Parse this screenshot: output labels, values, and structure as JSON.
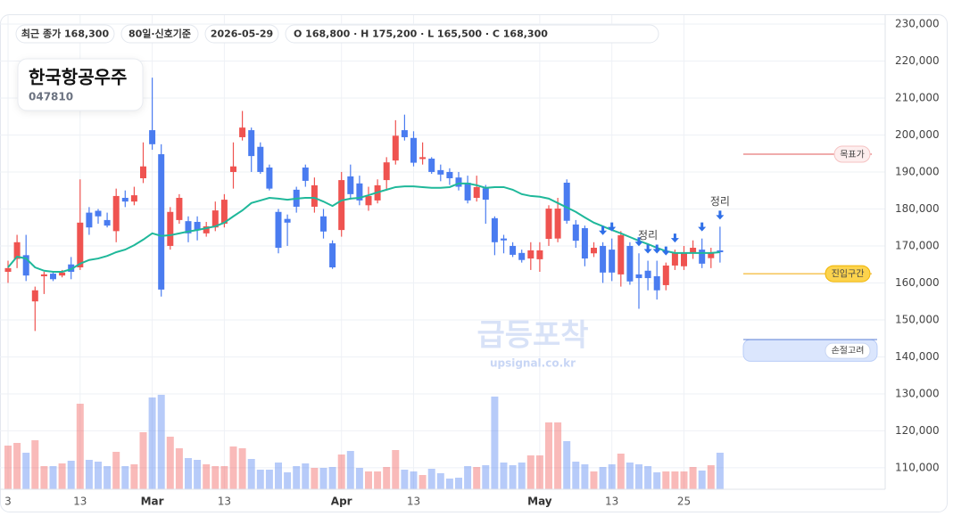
{
  "chart_data": {
    "type": "candlestick",
    "title": "한국항공우주",
    "subtitle": "047810",
    "badges": [
      "최근 종가 168,300",
      "80일·신호기준",
      "2026-05-29",
      "O 168,800 · H 175,200 · L 165,500 · C 168,300"
    ],
    "watermark": "급등포착",
    "watermark_url": "upsignal.co.kr",
    "categories": [
      "3",
      null,
      null,
      null,
      null,
      null,
      null,
      null,
      "13",
      null,
      null,
      null,
      null,
      null,
      null,
      null,
      "Mar",
      null,
      null,
      null,
      null,
      null,
      null,
      null,
      "13",
      null,
      null,
      null,
      null,
      null,
      null,
      null,
      null,
      null,
      null,
      null,
      null,
      "Apr",
      null,
      null,
      null,
      null,
      null,
      null,
      null,
      "13",
      null,
      null,
      null,
      null,
      null,
      null,
      null,
      null,
      null,
      null,
      null,
      null,
      null,
      "May",
      null,
      null,
      null,
      null,
      null,
      null,
      null,
      "13",
      null,
      null,
      null,
      null,
      null,
      null,
      null,
      "25",
      null,
      null,
      null,
      null
    ],
    "open": [
      163000,
      166500,
      167500,
      155000,
      161800,
      162500,
      162000,
      165000,
      164200,
      179000,
      179500,
      177000,
      174000,
      183000,
      182000,
      188300,
      201300,
      194800,
      170000,
      177000,
      176700,
      176500,
      173400,
      175000,
      176000,
      190000,
      199400,
      201300,
      196800,
      191200,
      179200,
      177300,
      185200,
      191200,
      180600,
      178000,
      170700,
      174300,
      188800,
      186900,
      181000,
      182300,
      187800,
      193100,
      201300,
      199200,
      193500,
      193600,
      190500,
      190000,
      188500,
      187100,
      183000,
      185600,
      177500,
      172000,
      170000,
      168100,
      166600,
      166400,
      171900,
      172000,
      187100,
      175800,
      174800,
      168000,
      170000,
      169000,
      162300,
      170000,
      162300,
      163300,
      161800,
      159400,
      164700,
      164500,
      168100,
      169000,
      166700,
      168800
    ],
    "high": [
      166000,
      173000,
      173000,
      159000,
      163000,
      163000,
      163500,
      167000,
      188000,
      180500,
      180000,
      179000,
      185500,
      185000,
      186000,
      198000,
      215500,
      197500,
      180500,
      184000,
      178000,
      178000,
      176500,
      182000,
      184000,
      198000,
      206500,
      202000,
      198000,
      192000,
      180000,
      178500,
      186000,
      192000,
      188500,
      180000,
      171500,
      190000,
      192000,
      189000,
      186000,
      188000,
      194000,
      204000,
      205500,
      201000,
      198000,
      194000,
      192000,
      191000,
      190000,
      189000,
      189000,
      186500,
      178000,
      173000,
      171000,
      169000,
      171000,
      171000,
      181000,
      183000,
      188000,
      177000,
      175500,
      171000,
      171000,
      172000,
      174000,
      171000,
      168000,
      166000,
      166000,
      165500,
      169000,
      170000,
      171500,
      172000,
      169500,
      175200
    ],
    "low": [
      160000,
      164000,
      160500,
      147000,
      157000,
      160500,
      161500,
      161000,
      163500,
      173000,
      176000,
      175000,
      171000,
      180500,
      181000,
      187000,
      196000,
      156300,
      169000,
      176000,
      171000,
      171500,
      172500,
      174000,
      175000,
      185500,
      198500,
      190000,
      189500,
      185000,
      168000,
      170000,
      179000,
      186000,
      179000,
      172000,
      163800,
      172500,
      182500,
      181000,
      179500,
      181500,
      185000,
      192000,
      198500,
      191500,
      192000,
      189500,
      187500,
      186500,
      185000,
      181500,
      182000,
      176000,
      167500,
      168000,
      167000,
      165500,
      163500,
      163000,
      170000,
      171000,
      176000,
      169500,
      164500,
      167000,
      160000,
      160500,
      159000,
      159500,
      153000,
      158000,
      155500,
      158000,
      163500,
      163500,
      166500,
      164000,
      164000,
      165500
    ],
    "close": [
      164000,
      171000,
      162000,
      158000,
      162300,
      161000,
      162800,
      163000,
      176300,
      175000,
      178000,
      175500,
      183500,
      182000,
      183700,
      191500,
      197500,
      158200,
      179200,
      183000,
      173400,
      174300,
      175300,
      179600,
      182500,
      191500,
      202000,
      194300,
      190000,
      185500,
      169500,
      176300,
      180600,
      187600,
      186400,
      173900,
      164200,
      187800,
      184000,
      182300,
      183500,
      186400,
      192600,
      199800,
      199400,
      192500,
      194000,
      190000,
      189300,
      188300,
      186000,
      182300,
      185900,
      182500,
      171000,
      171500,
      167600,
      166200,
      168800,
      168800,
      180100,
      180100,
      176800,
      171400,
      166600,
      169500,
      162800,
      162800,
      172900,
      160400,
      161300,
      161300,
      158000,
      164700,
      168100,
      168100,
      169500,
      165200,
      168300,
      168300
    ],
    "ma": [
      164200,
      167100,
      166600,
      164200,
      163300,
      163000,
      163000,
      163700,
      165200,
      166200,
      166600,
      167300,
      168300,
      169000,
      170200,
      171700,
      173400,
      172700,
      172900,
      173400,
      173900,
      174300,
      174800,
      175300,
      176300,
      178000,
      179600,
      181600,
      182300,
      183000,
      182800,
      182500,
      182800,
      183000,
      183000,
      182000,
      180800,
      182300,
      182800,
      183000,
      183700,
      184500,
      185200,
      185900,
      186100,
      186100,
      185900,
      185700,
      185700,
      185900,
      186900,
      186900,
      186400,
      185700,
      185900,
      185900,
      185200,
      184000,
      183500,
      183300,
      182800,
      181600,
      180400,
      179200,
      177700,
      176300,
      175300,
      174300,
      173400,
      172400,
      171400,
      170500,
      169500,
      168600,
      168100,
      168100,
      168100,
      168100,
      168100,
      168300
    ],
    "volume": [
      49,
      52,
      41,
      55,
      26,
      26,
      29,
      32,
      96,
      33,
      31,
      26,
      42,
      26,
      28,
      64,
      103,
      106,
      59,
      46,
      35,
      33,
      28,
      26,
      26,
      48,
      46,
      34,
      22,
      22,
      30,
      19,
      26,
      29,
      24,
      24,
      25,
      39,
      43,
      24,
      20,
      20,
      25,
      44,
      22,
      20,
      16,
      23,
      18,
      12,
      13,
      26,
      25,
      27,
      104,
      30,
      27,
      30,
      38,
      38,
      75,
      75,
      54,
      31,
      28,
      20,
      25,
      28,
      40,
      30,
      28,
      26,
      19,
      20,
      20,
      20,
      25,
      21,
      27,
      41
    ],
    "vlim": [
      0,
      110
    ],
    "up_color": "#ef5350",
    "down_color": "#4a7cf0",
    "ma_color": "#1fb89a",
    "signals": [
      66,
      67,
      70,
      71,
      72,
      73,
      74,
      77,
      79
    ],
    "annotations": [
      {
        "index": 71,
        "text": "정리"
      },
      {
        "index": 79,
        "text": "정리"
      }
    ],
    "levels": [
      {
        "label": "목표가",
        "value": 194800,
        "color": "#e05a5a"
      },
      {
        "label": "진입구간",
        "value": 162500,
        "color": "#f0a800"
      }
    ],
    "stop_zone": {
      "label": "손절고려",
      "range": [
        138800,
        144700
      ]
    },
    "ylim": [
      104200,
      236500
    ],
    "yticks": [
      {
        "value": 110000,
        "label": "110,000"
      },
      {
        "value": 120000,
        "label": "120,000"
      },
      {
        "value": 130000,
        "label": "130,000"
      },
      {
        "value": 140000,
        "label": "140,000"
      },
      {
        "value": 150000,
        "label": "150,000"
      },
      {
        "value": 160000,
        "label": "160,000"
      },
      {
        "value": 170000,
        "label": "170,000"
      },
      {
        "value": 180000,
        "label": "180,000"
      },
      {
        "value": 190000,
        "label": "190,000"
      },
      {
        "value": 200000,
        "label": "200,000"
      },
      {
        "value": 210000,
        "label": "210,000"
      },
      {
        "value": 220000,
        "label": "220,000"
      },
      {
        "value": 230000,
        "label": "230,000"
      }
    ],
    "grid": true
  }
}
